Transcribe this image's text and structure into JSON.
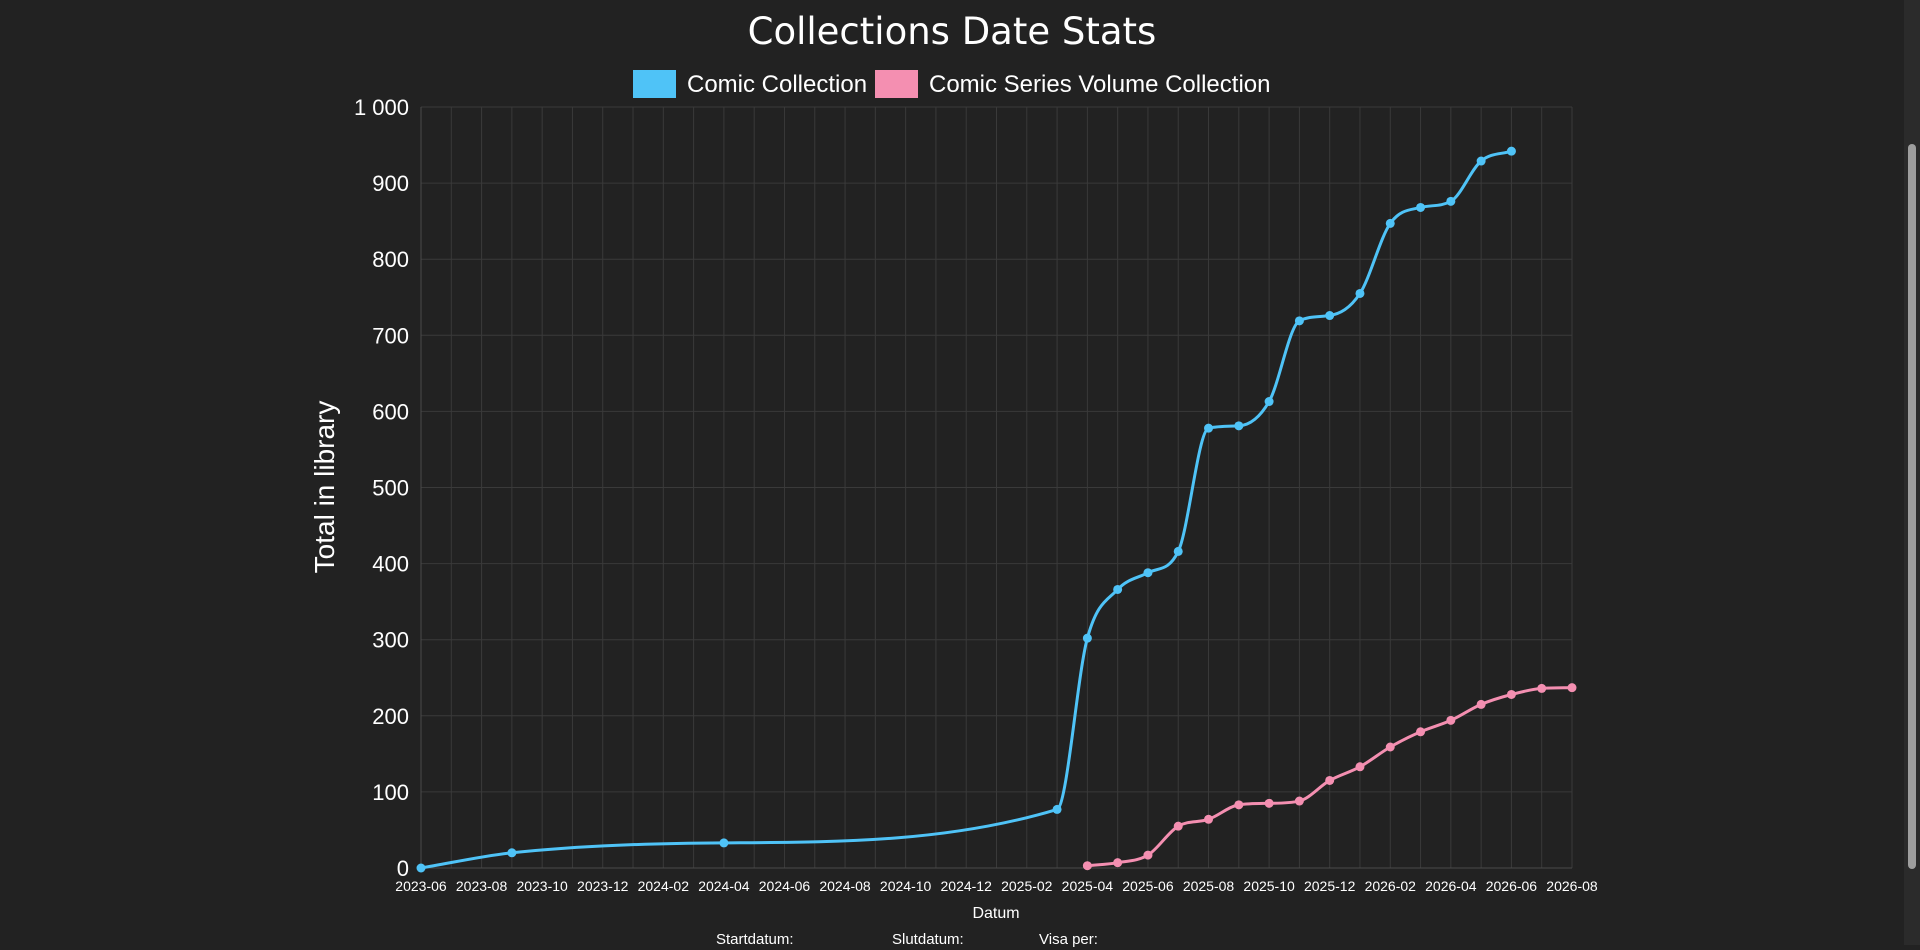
{
  "chart_data": {
    "type": "line",
    "title": "Collections Date Stats",
    "xlabel": "Datum",
    "ylabel": "Total in library",
    "ylim": [
      0,
      1000
    ],
    "yticks": [
      0,
      100,
      200,
      300,
      400,
      500,
      600,
      700,
      800,
      900,
      1000
    ],
    "ytick_labels": [
      "0",
      "100",
      "200",
      "300",
      "400",
      "500",
      "600",
      "700",
      "800",
      "900",
      "1 000"
    ],
    "xlim": [
      "2023-06",
      "2026-08"
    ],
    "xtick_labels": [
      "2023-06",
      "2023-08",
      "2023-10",
      "2023-12",
      "2024-02",
      "2024-04",
      "2024-06",
      "2024-08",
      "2024-10",
      "2024-12",
      "2025-02",
      "2025-04",
      "2025-06",
      "2025-08",
      "2025-10",
      "2025-12",
      "2026-02",
      "2026-04",
      "2026-06",
      "2026-08"
    ],
    "grid": true,
    "legend_position": "top",
    "series": [
      {
        "name": "Comic Collection",
        "color": "#4fc3f7",
        "points": [
          {
            "x": "2023-06",
            "y": 0
          },
          {
            "x": "2023-09",
            "y": 20
          },
          {
            "x": "2024-04",
            "y": 33
          },
          {
            "x": "2025-03",
            "y": 77
          },
          {
            "x": "2025-04",
            "y": 302
          },
          {
            "x": "2025-05",
            "y": 366
          },
          {
            "x": "2025-06",
            "y": 388
          },
          {
            "x": "2025-07",
            "y": 416
          },
          {
            "x": "2025-08",
            "y": 578
          },
          {
            "x": "2025-09",
            "y": 581
          },
          {
            "x": "2025-10",
            "y": 613
          },
          {
            "x": "2025-11",
            "y": 719
          },
          {
            "x": "2025-12",
            "y": 726
          },
          {
            "x": "2026-01",
            "y": 755
          },
          {
            "x": "2026-02",
            "y": 847
          },
          {
            "x": "2026-03",
            "y": 868
          },
          {
            "x": "2026-04",
            "y": 876
          },
          {
            "x": "2026-05",
            "y": 929
          },
          {
            "x": "2026-06",
            "y": 942
          }
        ]
      },
      {
        "name": "Comic Series Volume Collection",
        "color": "#f48fb1",
        "points": [
          {
            "x": "2025-04",
            "y": 3
          },
          {
            "x": "2025-05",
            "y": 7
          },
          {
            "x": "2025-06",
            "y": 17
          },
          {
            "x": "2025-07",
            "y": 55
          },
          {
            "x": "2025-08",
            "y": 64
          },
          {
            "x": "2025-09",
            "y": 83
          },
          {
            "x": "2025-10",
            "y": 85
          },
          {
            "x": "2025-11",
            "y": 88
          },
          {
            "x": "2025-12",
            "y": 115
          },
          {
            "x": "2026-01",
            "y": 133
          },
          {
            "x": "2026-02",
            "y": 159
          },
          {
            "x": "2026-03",
            "y": 179
          },
          {
            "x": "2026-04",
            "y": 194
          },
          {
            "x": "2026-05",
            "y": 215
          },
          {
            "x": "2026-06",
            "y": 228
          },
          {
            "x": "2026-07",
            "y": 236
          },
          {
            "x": "2026-08",
            "y": 237
          }
        ]
      }
    ]
  },
  "controls": {
    "start_label": "Startdatum:",
    "end_label": "Slutdatum:",
    "show_per_label": "Visa per:"
  }
}
